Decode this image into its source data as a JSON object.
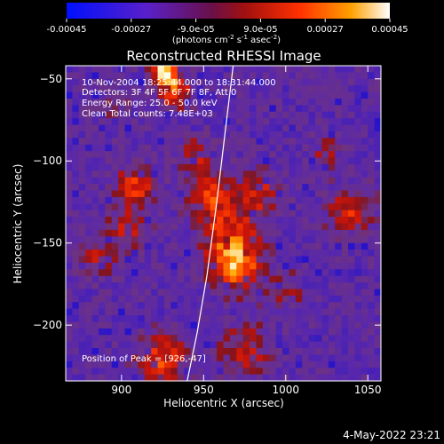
{
  "colorbar": {
    "ticks": [
      "-0.00045",
      "-0.00027",
      "-9.0e-05",
      "9.0e-05",
      "0.00027",
      "0.00045"
    ],
    "tick_values": [
      -0.00045,
      -0.00027,
      -9e-05,
      9e-05,
      0.00027,
      0.00045
    ],
    "range": [
      -0.00045,
      0.00045
    ],
    "units_main": "(photons cm",
    "units_exp1": "-2",
    "units_mid": " s",
    "units_exp2": "-1",
    "units_end": " asec",
    "units_exp3": "-2",
    "units_close": ")",
    "colors": [
      "#0010ff",
      "#5a20c8",
      "#9a1010",
      "#ff2000",
      "#ff9000",
      "#ffffff"
    ]
  },
  "chart_data": {
    "type": "heatmap",
    "title": "Reconstructed RHESSI Image",
    "xlabel": "Heliocentric X (arcsec)",
    "ylabel": "Heliocentric Y (arcsec)",
    "xlim": [
      866,
      1058
    ],
    "ylim": [
      -234,
      -42
    ],
    "x_ticks": [
      900,
      950,
      1000,
      1050
    ],
    "y_ticks": [
      -50,
      -100,
      -150,
      -200
    ],
    "peak": [
      926,
      -47
    ],
    "limb_points": [
      [
        940,
        -234
      ],
      [
        946,
        -205
      ],
      [
        952,
        -170
      ],
      [
        958,
        -125
      ],
      [
        964,
        -75
      ],
      [
        968,
        -42
      ]
    ],
    "annotations": {
      "time": "10-Nov-2004 18:25:44.000 to 18:31:44.000",
      "detectors": "Detectors: 3F 4F 5F 6F 7F 8F, Att 0",
      "energy": "Energy Range: 25.0 - 50.0 keV",
      "clean": "Clean    Total counts: 7.48E+03",
      "peak_label": "Position of Peak = [926,-47]"
    }
  },
  "footer": {
    "date": "4-May-2022 23:21"
  }
}
